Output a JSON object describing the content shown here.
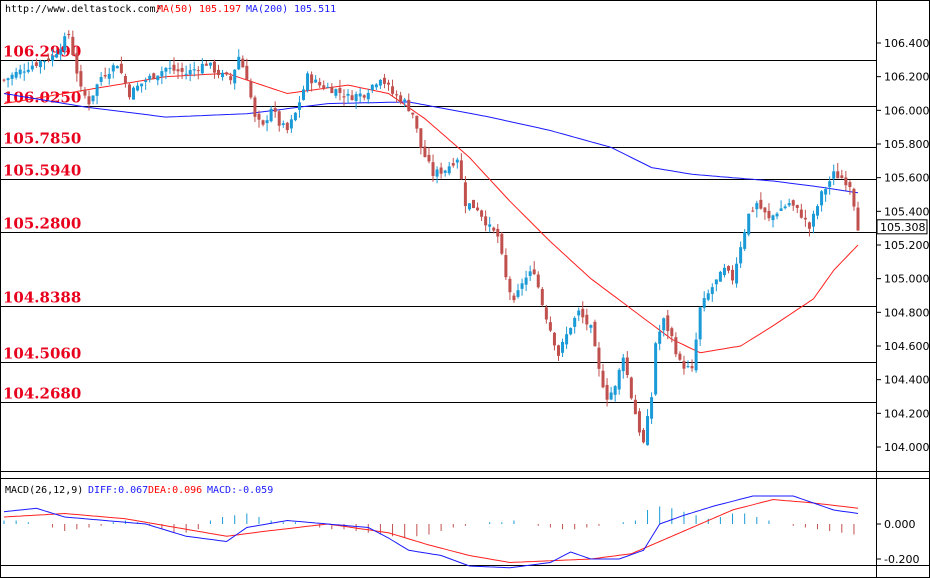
{
  "header": {
    "site": "http://www.deltastock.com/",
    "ma50_label": "MA(50)",
    "ma50_value": "105.197",
    "ma200_label": "MA(200)",
    "ma200_value": "105.511"
  },
  "macd_header": {
    "title": "MACD(26,12,9)",
    "diff": "DIFF:0.067",
    "dea": "DEA:0.096",
    "macd": "MACD:-0.059"
  },
  "colors": {
    "bull": "#1a9ad6",
    "bear": "#c0504d",
    "ma50": "#ff2020",
    "ma200": "#1a1aff",
    "level_text": "#e8001c"
  },
  "chart_data": [
    {
      "type": "candlestick",
      "title": "",
      "ylim": [
        103.86,
        106.63
      ],
      "yticks": [
        "104.000",
        "104.200",
        "104.400",
        "104.600",
        "104.800",
        "105.000",
        "105.200",
        "105.400",
        "105.600",
        "105.800",
        "106.000",
        "106.200",
        "106.400"
      ],
      "last_price": "105.308",
      "levels": [
        {
          "label": "106.2990",
          "value": 106.299
        },
        {
          "label": "106.0250",
          "value": 106.025
        },
        {
          "label": "105.7850",
          "value": 105.785
        },
        {
          "label": "105.5940",
          "value": 105.594
        },
        {
          "label": "105.2800",
          "value": 105.28
        },
        {
          "label": "104.8388",
          "value": 104.8388
        },
        {
          "label": "104.5060",
          "value": 104.506
        },
        {
          "label": "104.2680",
          "value": 104.268
        }
      ],
      "close_path": [
        [
          0,
          106.18
        ],
        [
          6,
          106.26
        ],
        [
          12,
          106.32
        ],
        [
          16,
          106.45
        ],
        [
          19,
          106.12
        ],
        [
          21,
          106.05
        ],
        [
          24,
          106.2
        ],
        [
          28,
          106.28
        ],
        [
          31,
          106.1
        ],
        [
          35,
          106.18
        ],
        [
          40,
          106.25
        ],
        [
          45,
          106.22
        ],
        [
          50,
          106.28
        ],
        [
          53,
          106.22
        ],
        [
          56,
          106.18
        ],
        [
          58,
          106.32
        ],
        [
          60,
          106.2
        ],
        [
          62,
          105.95
        ],
        [
          64,
          105.9
        ],
        [
          66,
          106.02
        ],
        [
          68,
          105.92
        ],
        [
          70,
          105.88
        ],
        [
          72,
          105.98
        ],
        [
          75,
          106.2
        ],
        [
          78,
          106.15
        ],
        [
          82,
          106.12
        ],
        [
          85,
          106.08
        ],
        [
          89,
          106.1
        ],
        [
          93,
          106.2
        ],
        [
          96,
          106.1
        ],
        [
          99,
          106.05
        ],
        [
          101,
          105.98
        ],
        [
          103,
          105.78
        ],
        [
          106,
          105.62
        ],
        [
          109,
          105.65
        ],
        [
          112,
          105.72
        ],
        [
          114,
          105.45
        ],
        [
          117,
          105.42
        ],
        [
          120,
          105.3
        ],
        [
          122,
          105.25
        ],
        [
          124,
          105.0
        ],
        [
          126,
          104.85
        ],
        [
          128,
          104.98
        ],
        [
          131,
          105.05
        ],
        [
          133,
          104.85
        ],
        [
          135,
          104.7
        ],
        [
          137,
          104.55
        ],
        [
          140,
          104.72
        ],
        [
          142,
          104.8
        ],
        [
          145,
          104.7
        ],
        [
          147,
          104.45
        ],
        [
          149,
          104.3
        ],
        [
          151,
          104.35
        ],
        [
          153,
          104.55
        ],
        [
          155,
          104.3
        ],
        [
          157,
          104.1
        ],
        [
          158,
          104.02
        ],
        [
          160,
          104.3
        ],
        [
          161,
          104.62
        ],
        [
          163,
          104.75
        ],
        [
          165,
          104.65
        ],
        [
          167,
          104.5
        ],
        [
          170,
          104.45
        ],
        [
          172,
          104.82
        ],
        [
          175,
          104.95
        ],
        [
          178,
          105.05
        ],
        [
          180,
          105.0
        ],
        [
          182,
          105.2
        ],
        [
          184,
          105.38
        ],
        [
          186,
          105.45
        ],
        [
          189,
          105.35
        ],
        [
          191,
          105.4
        ],
        [
          194,
          105.45
        ],
        [
          197,
          105.38
        ],
        [
          199,
          105.3
        ],
        [
          202,
          105.5
        ],
        [
          205,
          105.62
        ],
        [
          207,
          105.6
        ],
        [
          209,
          105.56
        ],
        [
          210,
          105.45
        ],
        [
          211,
          105.31
        ]
      ],
      "ma50_path": [
        [
          0,
          106.04
        ],
        [
          20,
          106.12
        ],
        [
          40,
          106.2
        ],
        [
          55,
          106.22
        ],
        [
          70,
          106.1
        ],
        [
          85,
          106.15
        ],
        [
          95,
          106.1
        ],
        [
          104,
          105.95
        ],
        [
          115,
          105.72
        ],
        [
          125,
          105.46
        ],
        [
          135,
          105.22
        ],
        [
          145,
          105.0
        ],
        [
          155,
          104.82
        ],
        [
          165,
          104.64
        ],
        [
          172,
          104.56
        ],
        [
          182,
          104.6
        ],
        [
          190,
          104.72
        ],
        [
          200,
          104.88
        ],
        [
          205,
          105.05
        ],
        [
          211,
          105.2
        ]
      ],
      "ma200_path": [
        [
          0,
          106.1
        ],
        [
          20,
          106.02
        ],
        [
          40,
          105.96
        ],
        [
          60,
          105.98
        ],
        [
          80,
          106.04
        ],
        [
          100,
          106.05
        ],
        [
          120,
          105.96
        ],
        [
          135,
          105.88
        ],
        [
          150,
          105.78
        ],
        [
          160,
          105.66
        ],
        [
          170,
          105.62
        ],
        [
          180,
          105.6
        ],
        [
          190,
          105.58
        ],
        [
          200,
          105.55
        ],
        [
          211,
          105.51
        ]
      ]
    },
    {
      "type": "macd",
      "title": "MACD(26,12,9)",
      "ylim": [
        -0.29,
        0.24
      ],
      "yticks": [
        "0.000",
        "-0.200"
      ],
      "diff_path": [
        [
          0,
          0.07
        ],
        [
          8,
          0.09
        ],
        [
          15,
          0.04
        ],
        [
          25,
          0.02
        ],
        [
          35,
          0.0
        ],
        [
          45,
          -0.07
        ],
        [
          55,
          -0.1
        ],
        [
          60,
          -0.02
        ],
        [
          70,
          0.02
        ],
        [
          80,
          0.0
        ],
        [
          90,
          -0.02
        ],
        [
          95,
          -0.08
        ],
        [
          100,
          -0.15
        ],
        [
          108,
          -0.18
        ],
        [
          115,
          -0.24
        ],
        [
          125,
          -0.25
        ],
        [
          135,
          -0.22
        ],
        [
          140,
          -0.16
        ],
        [
          145,
          -0.2
        ],
        [
          152,
          -0.2
        ],
        [
          158,
          -0.15
        ],
        [
          162,
          0.0
        ],
        [
          168,
          0.05
        ],
        [
          175,
          0.1
        ],
        [
          185,
          0.16
        ],
        [
          195,
          0.16
        ],
        [
          205,
          0.08
        ],
        [
          211,
          0.06
        ]
      ],
      "dea_path": [
        [
          0,
          0.04
        ],
        [
          15,
          0.06
        ],
        [
          30,
          0.03
        ],
        [
          45,
          -0.03
        ],
        [
          55,
          -0.07
        ],
        [
          65,
          -0.04
        ],
        [
          80,
          0.0
        ],
        [
          95,
          -0.05
        ],
        [
          105,
          -0.12
        ],
        [
          115,
          -0.18
        ],
        [
          125,
          -0.22
        ],
        [
          135,
          -0.21
        ],
        [
          145,
          -0.2
        ],
        [
          155,
          -0.17
        ],
        [
          162,
          -0.1
        ],
        [
          170,
          -0.02
        ],
        [
          180,
          0.08
        ],
        [
          190,
          0.14
        ],
        [
          200,
          0.12
        ],
        [
          211,
          0.09
        ]
      ],
      "hist": [
        0.02,
        0.02,
        0.01,
        0.0,
        -0.02,
        -0.04,
        -0.03,
        -0.02,
        -0.01,
        0.01,
        0.02,
        0.01,
        -0.01,
        -0.03,
        -0.05,
        -0.05,
        -0.03,
        0.02,
        0.04,
        0.05,
        0.06,
        0.04,
        0.02,
        0.01,
        0.01,
        0.0,
        -0.02,
        -0.03,
        -0.03,
        -0.04,
        -0.05,
        -0.06,
        -0.07,
        -0.08,
        -0.07,
        -0.06,
        -0.04,
        -0.02,
        -0.01,
        0.0,
        0.01,
        0.01,
        0.02,
        0.0,
        -0.01,
        -0.02,
        -0.03,
        -0.03,
        -0.02,
        -0.01,
        0.0,
        0.01,
        0.02,
        0.05,
        0.08,
        0.1,
        0.09,
        0.07,
        0.05,
        0.03,
        0.04,
        0.06,
        0.06,
        0.04,
        0.02,
        0.0,
        -0.01,
        -0.02,
        -0.03,
        -0.04,
        -0.05,
        -0.06
      ]
    }
  ]
}
